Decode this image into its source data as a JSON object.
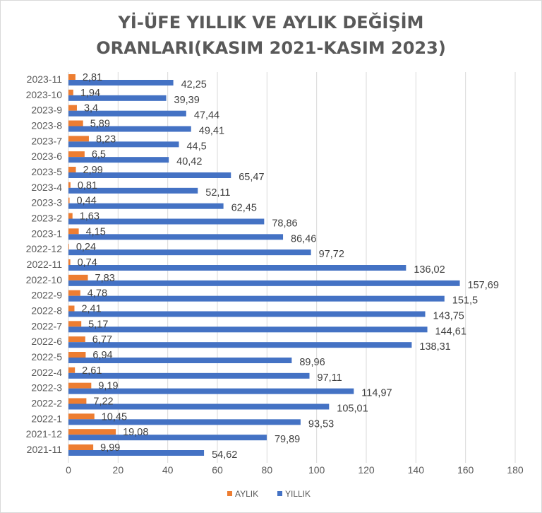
{
  "chart_data": {
    "type": "bar",
    "orientation": "horizontal",
    "title": [
      "Yİ-ÜFE YILLIK VE AYLIK DEĞİŞİM",
      "ORANLARI(KASIM 2021-KASIM 2023)"
    ],
    "categories": [
      "2021-11",
      "2021-12",
      "2022-1",
      "2022-2",
      "2022-3",
      "2022-4",
      "2022-5",
      "2022-6",
      "2022-7",
      "2022-8",
      "2022-9",
      "2022-10",
      "2022-11",
      "2022-12",
      "2023-1",
      "2023-2",
      "2023-3",
      "2023-4",
      "2023-5",
      "2023-6",
      "2023-7",
      "2023-8",
      "2023-9",
      "2023-10",
      "2023-11"
    ],
    "series": [
      {
        "name": "AYLIK",
        "color": "#ED7D31",
        "values": [
          9.99,
          19.08,
          10.45,
          7.22,
          9.19,
          2.61,
          6.94,
          6.77,
          5.17,
          2.41,
          4.78,
          7.83,
          0.74,
          0.24,
          4.15,
          1.63,
          0.44,
          0.81,
          2.99,
          6.5,
          8.23,
          5.89,
          3.4,
          1.94,
          2.81
        ],
        "labels": [
          "9,99",
          "19,08",
          "10,45",
          "7,22",
          "9,19",
          "2,61",
          "6,94",
          "6,77",
          "5,17",
          "2,41",
          "4,78",
          "7,83",
          "0,74",
          "0,24",
          "4,15",
          "1,63",
          "0,44",
          "0,81",
          "2,99",
          "6,5",
          "8,23",
          "5,89",
          "3,4",
          "1,94",
          "2,81"
        ]
      },
      {
        "name": "YILLIK",
        "color": "#4472C4",
        "values": [
          54.62,
          79.89,
          93.53,
          105.01,
          114.97,
          97.11,
          89.96,
          138.31,
          144.61,
          143.75,
          151.5,
          157.69,
          136.02,
          97.72,
          86.46,
          78.86,
          62.45,
          52.11,
          65.47,
          40.42,
          44.5,
          49.41,
          47.44,
          39.39,
          42.25
        ],
        "labels": [
          "54,62",
          "79,89",
          "93,53",
          "105,01",
          "114,97",
          "97,11",
          "89,96",
          "138,31",
          "144,61",
          "143,75",
          "151,5",
          "157,69",
          "136,02",
          "97,72",
          "86,46",
          "78,86",
          "62,45",
          "52,11",
          "65,47",
          "40,42",
          "44,5",
          "49,41",
          "47,44",
          "39,39",
          "42,25"
        ]
      }
    ],
    "xlim": [
      0,
      180
    ],
    "xticks": [
      "0",
      "20",
      "40",
      "60",
      "80",
      "100",
      "120",
      "140",
      "160",
      "180"
    ],
    "grid": true,
    "legend_position": "bottom"
  }
}
